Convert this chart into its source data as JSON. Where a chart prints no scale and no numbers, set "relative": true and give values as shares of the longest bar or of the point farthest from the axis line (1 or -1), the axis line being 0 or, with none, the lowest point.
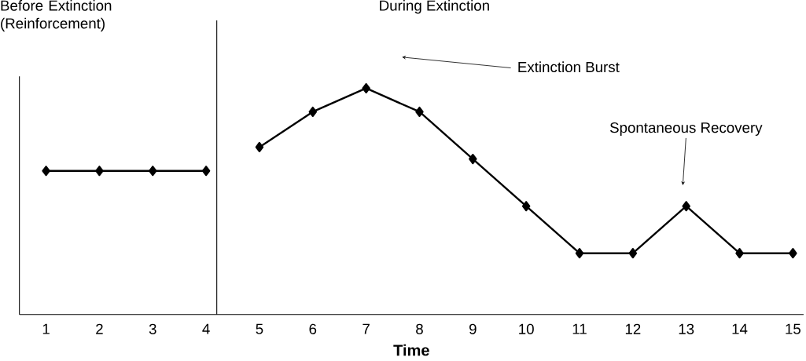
{
  "chart_data": {
    "type": "line",
    "relative": true,
    "xlabel": "Time",
    "x": [
      1,
      2,
      3,
      4,
      5,
      6,
      7,
      8,
      9,
      10,
      11,
      12,
      13,
      14,
      15
    ],
    "xlim": [
      0.5,
      15.2
    ],
    "xticks": [
      1,
      2,
      3,
      4,
      5,
      6,
      7,
      8,
      9,
      10,
      11,
      12,
      13,
      14,
      15
    ],
    "marker": "diamond",
    "series": [
      {
        "color": "#000000",
        "values": [
          0.635,
          0.635,
          0.635,
          0.635,
          null,
          null,
          null,
          null,
          null,
          null,
          null,
          null,
          null,
          null,
          null
        ]
      },
      {
        "color": "#000000",
        "values": [
          null,
          null,
          null,
          null,
          0.74,
          0.896,
          1,
          0.896,
          0.6875,
          0.479,
          0.271,
          0.271,
          0.479,
          0.271,
          0.271
        ]
      }
    ],
    "ref_lines": [
      {
        "axis": "x",
        "value": 4.2,
        "color": "#000000"
      }
    ],
    "annotations": [
      "Before Extinction (Reinforcement)",
      "During Extinction",
      "Extinction Burst",
      "Spontaneous Recovery"
    ]
  }
}
